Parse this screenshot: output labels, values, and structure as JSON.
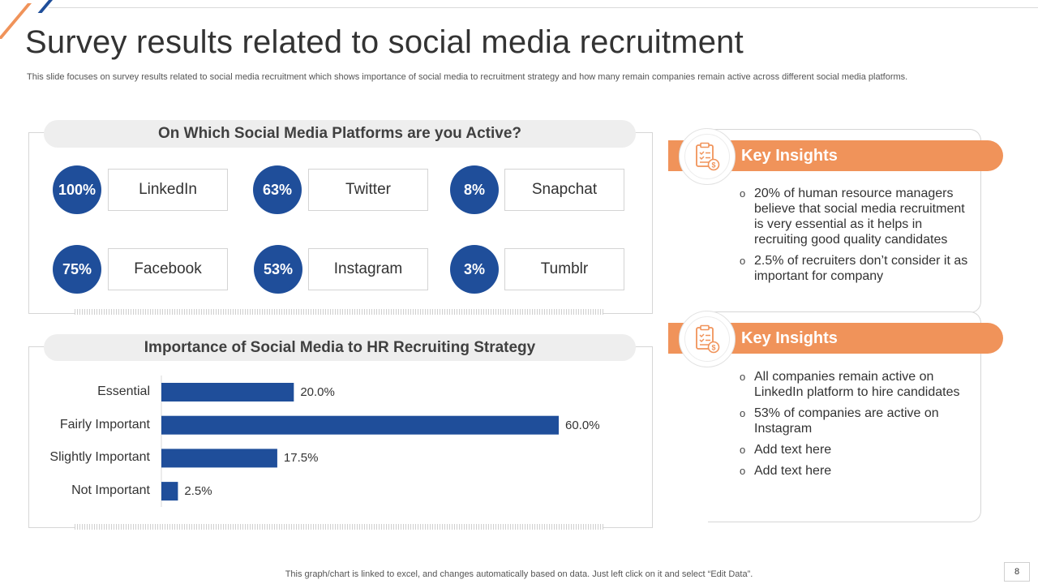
{
  "slide": {
    "title": "Survey results related to social media recruitment",
    "subtitle": "This slide focuses on survey results related to social media recruitment which shows importance of social media to recruitment strategy and how many remain companies remain active across different social media platforms.",
    "footer_note": "This graph/chart is linked to excel,  and changes automatically based on data. Just left click on it and select “Edit Data”.",
    "page_number": "8"
  },
  "platforms_panel": {
    "header": "On Which Social Media Platforms are you Active?",
    "items": [
      {
        "percent": "100%",
        "name": "LinkedIn"
      },
      {
        "percent": "63%",
        "name": "Twitter"
      },
      {
        "percent": "8%",
        "name": "Snapchat"
      },
      {
        "percent": "75%",
        "name": "Facebook"
      },
      {
        "percent": "53%",
        "name": "Instagram"
      },
      {
        "percent": "3%",
        "name": "Tumblr"
      }
    ]
  },
  "importance_panel": {
    "header": "Importance of Social Media to HR Recruiting Strategy"
  },
  "chart_data": {
    "type": "bar",
    "orientation": "horizontal",
    "categories": [
      "Essential",
      "Fairly Important",
      "Slightly Important",
      "Not Important"
    ],
    "values": [
      20.0,
      60.0,
      17.5,
      2.5
    ],
    "value_labels": [
      "20.0%",
      "60.0%",
      "17.5%",
      "2.5%"
    ],
    "xlim": [
      0,
      60
    ],
    "grid": false,
    "legend": "none",
    "bar_color": "#1f4e9a"
  },
  "insights": [
    {
      "title": "Key Insights",
      "icon": "clipboard-dollar-icon",
      "bullets": [
        "20% of human resource managers believe that social media recruitment is very essential as it helps in recruiting good quality candidates",
        "2.5% of recruiters don’t consider it as important for company"
      ]
    },
    {
      "title": "Key Insights",
      "icon": "clipboard-dollar-icon",
      "bullets": [
        "All companies remain active on LinkedIn platform to hire candidates",
        "53% of companies are active on Instagram",
        "Add text here",
        "Add text here"
      ]
    }
  ],
  "colors": {
    "accent_orange": "#f0935a",
    "accent_blue": "#1f4e9a",
    "header_grey": "#eeeeee"
  }
}
